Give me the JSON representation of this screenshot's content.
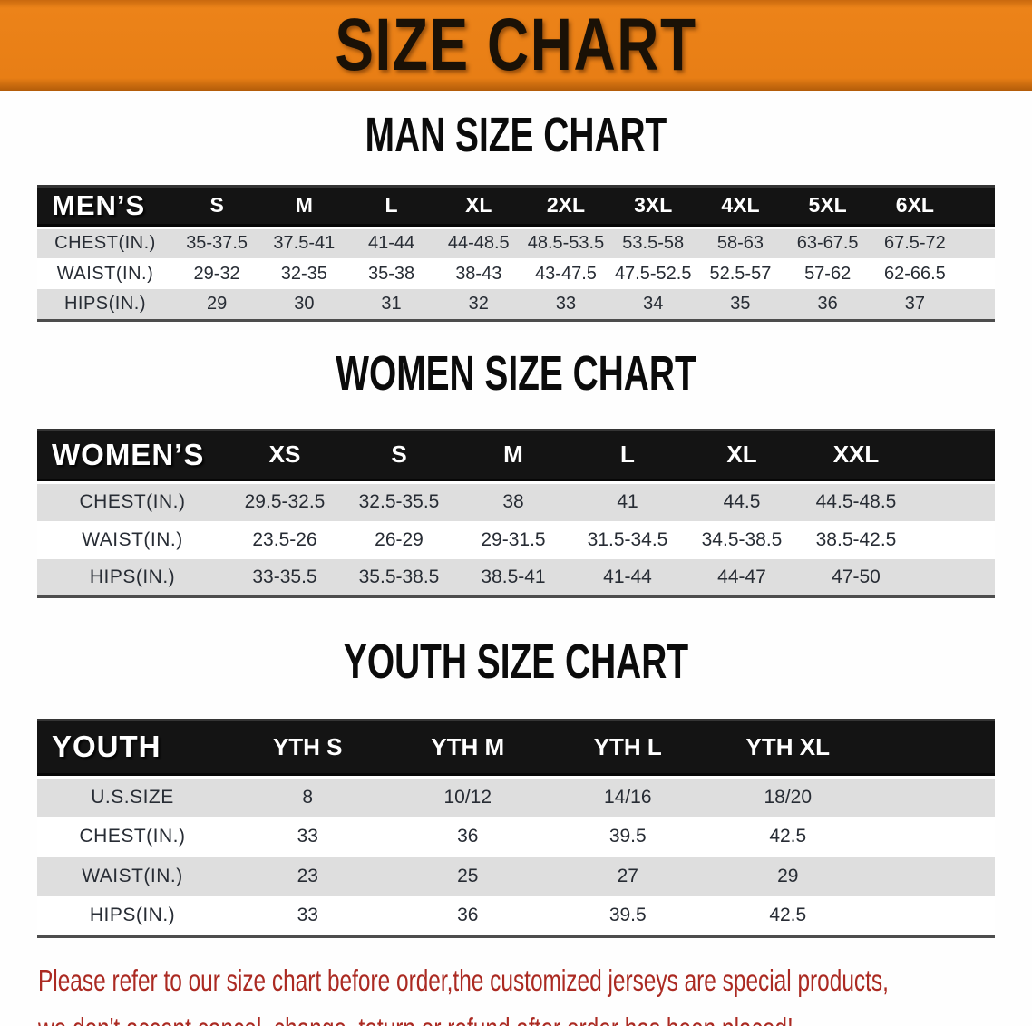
{
  "banner": {
    "title": "SIZE CHART",
    "background_color": "#e87e15",
    "text_color": "#1a1106"
  },
  "sections": [
    {
      "id": "men",
      "title": "MAN SIZE CHART",
      "corner_label": "MEN’S",
      "sizes": [
        "S",
        "M",
        "L",
        "XL",
        "2XL",
        "3XL",
        "4XL",
        "5XL",
        "6XL"
      ],
      "rows": [
        {
          "label": "CHEST(IN.)",
          "values": [
            "35-37.5",
            "37.5-41",
            "41-44",
            "44-48.5",
            "48.5-53.5",
            "53.5-58",
            "58-63",
            "63-67.5",
            "67.5-72"
          ]
        },
        {
          "label": "WAIST(IN.)",
          "values": [
            "29-32",
            "32-35",
            "35-38",
            "38-43",
            "43-47.5",
            "47.5-52.5",
            "52.5-57",
            "57-62",
            "62-66.5"
          ]
        },
        {
          "label": "HIPS(IN.)",
          "values": [
            "29",
            "30",
            "31",
            "32",
            "33",
            "34",
            "35",
            "36",
            "37"
          ]
        }
      ]
    },
    {
      "id": "women",
      "title": "WOMEN SIZE CHART",
      "corner_label": "WOMEN’S",
      "sizes": [
        "XS",
        "S",
        "M",
        "L",
        "XL",
        "XXL"
      ],
      "rows": [
        {
          "label": "CHEST(IN.)",
          "values": [
            "29.5-32.5",
            "32.5-35.5",
            "38",
            "41",
            "44.5",
            "44.5-48.5"
          ]
        },
        {
          "label": "WAIST(IN.)",
          "values": [
            "23.5-26",
            "26-29",
            "29-31.5",
            "31.5-34.5",
            "34.5-38.5",
            "38.5-42.5"
          ]
        },
        {
          "label": "HIPS(IN.)",
          "values": [
            "33-35.5",
            "35.5-38.5",
            "38.5-41",
            "41-44",
            "44-47",
            "47-50"
          ]
        }
      ]
    },
    {
      "id": "youth",
      "title": "YOUTH SIZE CHART",
      "corner_label": "YOUTH",
      "sizes": [
        "YTH S",
        "YTH M",
        "YTH L",
        "YTH XL"
      ],
      "rows": [
        {
          "label": "U.S.SIZE",
          "values": [
            "8",
            "10/12",
            "14/16",
            "18/20"
          ]
        },
        {
          "label": "CHEST(IN.)",
          "values": [
            "33",
            "36",
            "39.5",
            "42.5"
          ]
        },
        {
          "label": "WAIST(IN.)",
          "values": [
            "23",
            "25",
            "27",
            "29"
          ]
        },
        {
          "label": "HIPS(IN.)",
          "values": [
            "33",
            "36",
            "39.5",
            "42.5"
          ]
        }
      ]
    }
  ],
  "table_style": {
    "header_bg": "#141414",
    "stripe_gray": "#dedede",
    "stripe_white": "#ffffff"
  },
  "disclaimer": {
    "line1": "Please refer to our size chart before order,the customized jerseys are special products,",
    "line2": "we don't accept cancel, change, teturn or refund after order has been placed!",
    "color": "#ab2a22"
  }
}
